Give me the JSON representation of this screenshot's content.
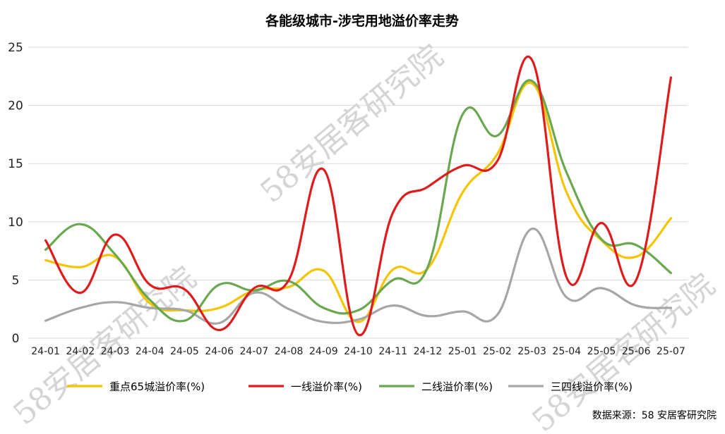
{
  "chart_data": {
    "type": "line",
    "title": "各能级城市-涉宅用地溢价率走势",
    "x": [
      "24-01",
      "24-02",
      "24-03",
      "24-04",
      "24-05",
      "24-06",
      "24-07",
      "24-08",
      "24-09",
      "24-10",
      "24-11",
      "24-12",
      "25-01",
      "25-02",
      "25-03",
      "25-04",
      "25-05",
      "25-06",
      "25-07"
    ],
    "ylim": [
      0,
      25
    ],
    "yticks": [
      0,
      5,
      10,
      15,
      20,
      25
    ],
    "grid": true,
    "legend_position": "bottom",
    "series": [
      {
        "name": "重点65城溢价率(%)",
        "color": "#f5c400",
        "values": [
          6.7,
          6.1,
          7.0,
          3.0,
          2.4,
          2.6,
          4.1,
          4.4,
          5.8,
          1.4,
          5.9,
          6.0,
          12.5,
          15.8,
          21.9,
          12.5,
          8.4,
          7.0,
          10.3
        ]
      },
      {
        "name": "一线溢价率(%)",
        "color": "#e01b1b",
        "values": [
          8.4,
          3.9,
          8.9,
          4.6,
          4.2,
          0.7,
          4.3,
          5.0,
          14.5,
          0.3,
          10.8,
          13.0,
          14.8,
          15.2,
          23.9,
          5.2,
          9.9,
          5.0,
          22.4
        ]
      },
      {
        "name": "二线溢价率(%)",
        "color": "#6aa84f",
        "values": [
          7.6,
          9.8,
          7.2,
          3.3,
          1.5,
          4.6,
          4.1,
          4.9,
          2.6,
          2.4,
          5.0,
          6.1,
          19.2,
          17.4,
          22.1,
          14.2,
          8.5,
          8.0,
          5.6
        ]
      },
      {
        "name": "三四线溢价率(%)",
        "color": "#a6a6a6",
        "values": [
          1.5,
          2.6,
          3.1,
          2.6,
          2.4,
          1.3,
          3.9,
          2.5,
          1.4,
          1.6,
          2.8,
          1.9,
          2.3,
          2.0,
          9.4,
          3.5,
          4.3,
          2.8,
          2.6
        ]
      }
    ]
  },
  "source": "数据来源：58 安居客研究院",
  "watermark": "58安居客研究院"
}
